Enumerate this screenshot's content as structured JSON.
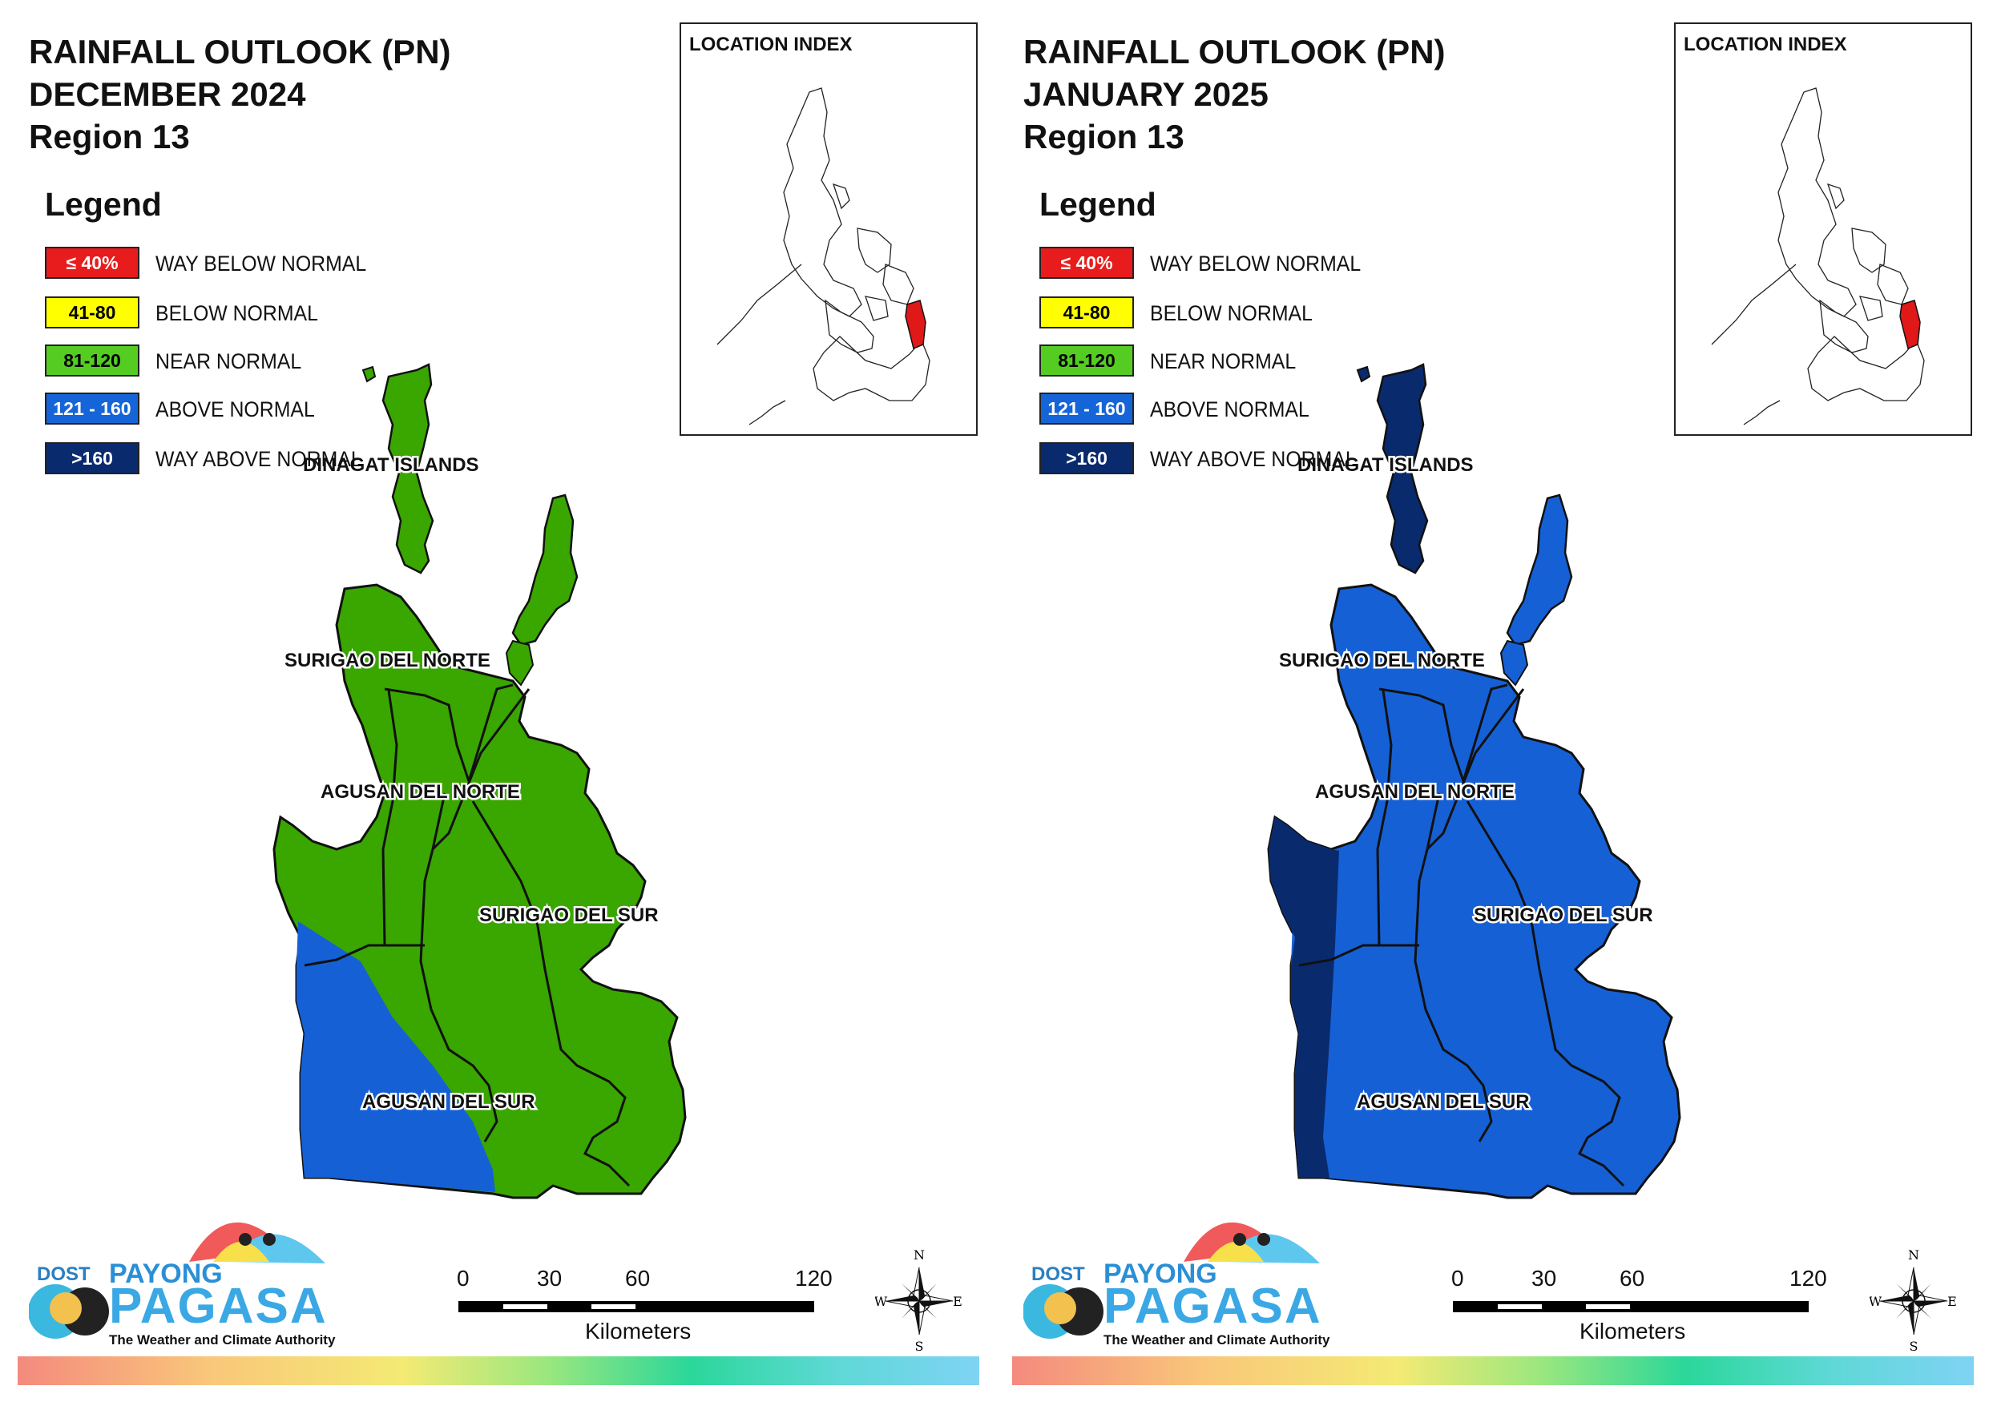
{
  "panels": [
    {
      "title_line1": "RAINFALL OUTLOOK (PN)",
      "title_line2": "DECEMBER 2024",
      "title_line3": "Region 13",
      "legend_title": "Legend",
      "legend": [
        {
          "swatch": "≤ 40%",
          "label": "WAY BELOW NORMAL",
          "color": "#e81c1c",
          "text_color": "#ffffff"
        },
        {
          "swatch": "41-80",
          "label": "BELOW NORMAL",
          "color": "#ffff00",
          "text_color": "#000000"
        },
        {
          "swatch": "81-120",
          "label": "NEAR NORMAL",
          "color": "#55cc22",
          "text_color": "#000000"
        },
        {
          "swatch": "121 - 160",
          "label": "ABOVE NORMAL",
          "color": "#1565d8",
          "text_color": "#ffffff"
        },
        {
          "swatch": ">160",
          "label": "WAY ABOVE NORMAL",
          "color": "#0a2a6e",
          "text_color": "#ffffff"
        }
      ],
      "inset_title": "LOCATION INDEX",
      "provinces": {
        "dinagat": "DINAGAT ISLANDS",
        "sdn": "SURIGAO DEL NORTE",
        "adn": "AGUSAN DEL NORTE",
        "sds": "SURIGAO DEL SUR",
        "ads": "AGUSAN DEL SUR"
      },
      "map_colors": {
        "main": "#3aa600",
        "secondary": "#1660d6",
        "dark": "#0a2a6e"
      },
      "scale_ticks": [
        "0",
        "30",
        "60",
        "120"
      ],
      "scale_unit": "Kilometers",
      "compass": {
        "n": "N",
        "s": "S",
        "e": "E",
        "w": "W"
      },
      "logo": {
        "dost": "DOST",
        "payong": "PAYONG",
        "pagasa": "PAGASA",
        "tagline": "The Weather and Climate Authority"
      }
    },
    {
      "title_line1": "RAINFALL OUTLOOK (PN)",
      "title_line2": "JANUARY 2025",
      "title_line3": "Region 13",
      "legend_title": "Legend",
      "legend": [
        {
          "swatch": "≤ 40%",
          "label": "WAY BELOW NORMAL",
          "color": "#e81c1c",
          "text_color": "#ffffff"
        },
        {
          "swatch": "41-80",
          "label": "BELOW NORMAL",
          "color": "#ffff00",
          "text_color": "#000000"
        },
        {
          "swatch": "81-120",
          "label": "NEAR NORMAL",
          "color": "#55cc22",
          "text_color": "#000000"
        },
        {
          "swatch": "121 - 160",
          "label": "ABOVE NORMAL",
          "color": "#1565d8",
          "text_color": "#ffffff"
        },
        {
          "swatch": ">160",
          "label": "WAY ABOVE NORMAL",
          "color": "#0a2a6e",
          "text_color": "#ffffff"
        }
      ],
      "inset_title": "LOCATION INDEX",
      "provinces": {
        "dinagat": "DINAGAT ISLANDS",
        "sdn": "SURIGAO DEL NORTE",
        "adn": "AGUSAN DEL NORTE",
        "sds": "SURIGAO DEL SUR",
        "ads": "AGUSAN DEL SUR"
      },
      "map_colors": {
        "main": "#1660d6",
        "secondary": "#0a2a6e",
        "dark": "#0a2a6e"
      },
      "scale_ticks": [
        "0",
        "30",
        "60",
        "120"
      ],
      "scale_unit": "Kilometers",
      "compass": {
        "n": "N",
        "s": "S",
        "e": "E",
        "w": "W"
      },
      "logo": {
        "dost": "DOST",
        "payong": "PAYONG",
        "pagasa": "PAGASA",
        "tagline": "The Weather and Climate Authority"
      }
    }
  ]
}
